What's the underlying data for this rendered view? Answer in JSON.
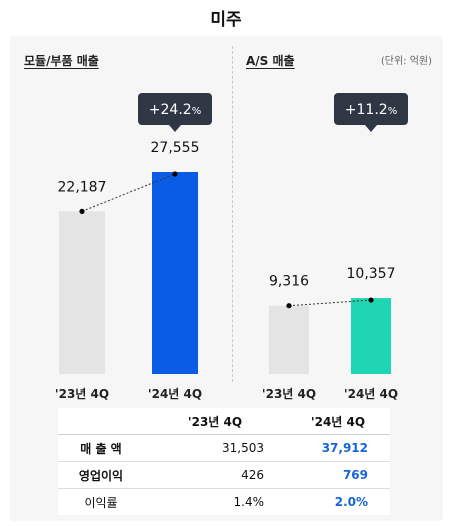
{
  "title": "미주",
  "unit_label": "(단위: 억원)",
  "colors": {
    "base_bar": "#e4e4e4",
    "module_highlight": "#0a5ce6",
    "as_highlight": "#1fd6b2",
    "callout_bg": "#2f3744",
    "accent_text": "#1565d8"
  },
  "chart_data": [
    {
      "type": "bar",
      "title": "모듈/부품 매출",
      "categories": [
        "'23년 4Q",
        "'24년 4Q"
      ],
      "values": [
        22187,
        27555
      ],
      "value_labels": [
        "22,187",
        "27,555"
      ],
      "growth_label": "+24.2",
      "growth_unit": "%",
      "ylim": [
        0,
        30000
      ]
    },
    {
      "type": "bar",
      "title": "A/S 매출",
      "categories": [
        "'23년 4Q",
        "'24년 4Q"
      ],
      "values": [
        9316,
        10357
      ],
      "value_labels": [
        "9,316",
        "10,357"
      ],
      "growth_label": "+11.2",
      "growth_unit": "%",
      "ylim": [
        0,
        30000
      ]
    }
  ],
  "table": {
    "headers": [
      "",
      "'23년 4Q",
      "'24년 4Q"
    ],
    "rows": [
      {
        "label": "매 출 액",
        "v1": "31,503",
        "v2": "37,912"
      },
      {
        "label": "영업이익",
        "v1": "426",
        "v2": "769"
      },
      {
        "label": "이익률",
        "v1": "1.4%",
        "v2": "2.0%"
      }
    ]
  }
}
